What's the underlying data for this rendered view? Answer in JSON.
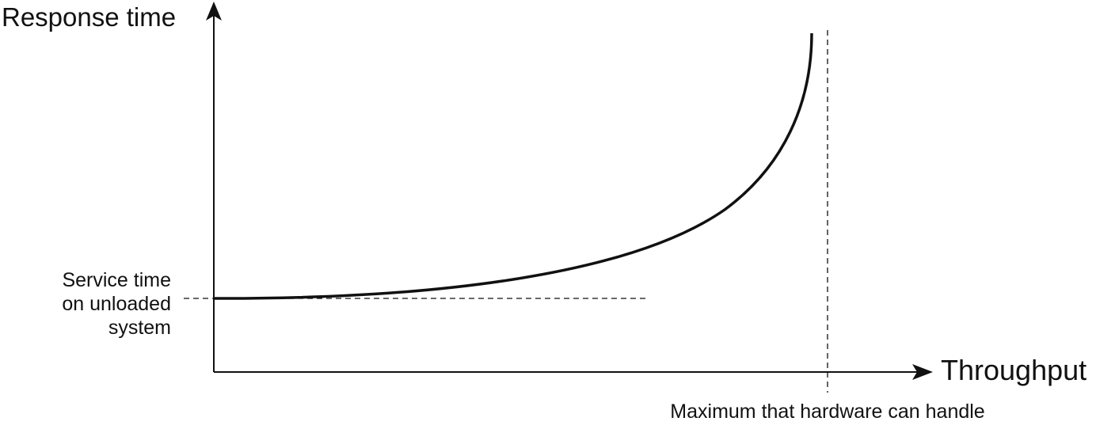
{
  "axes": {
    "y_label": "Response time",
    "x_label": "Throughput"
  },
  "annotations": {
    "service_time": [
      "Service time",
      "on unloaded",
      "system"
    ],
    "maximum": "Maximum that hardware can handle"
  }
}
